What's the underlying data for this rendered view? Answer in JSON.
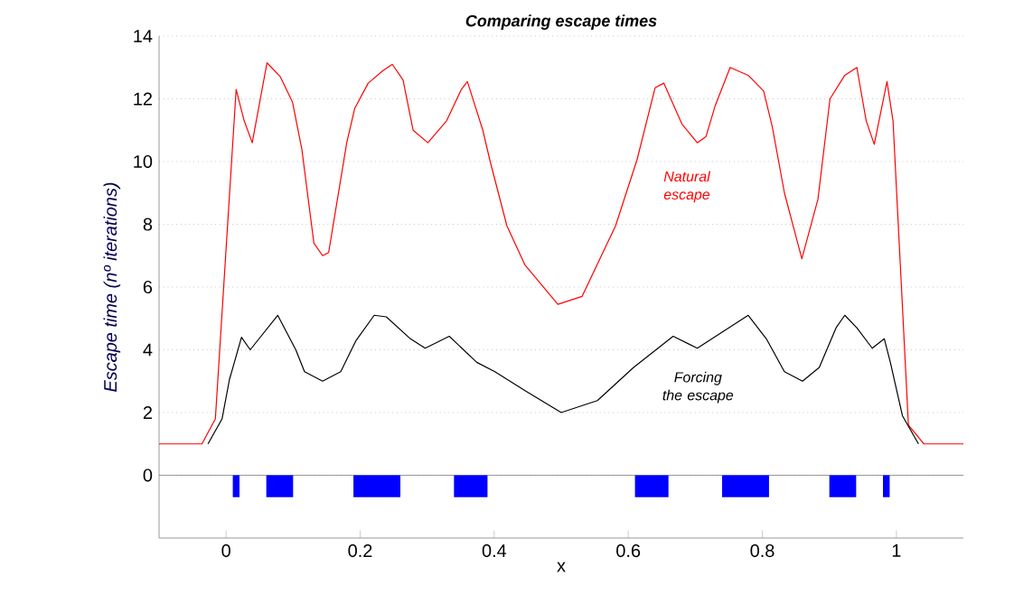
{
  "chart_data": {
    "type": "line",
    "title": "Comparing escape times",
    "xlabel": "x",
    "ylabel": "Escape time (nº iterations)",
    "xlim": [
      -0.1,
      1.1
    ],
    "ylim": [
      -2,
      14
    ],
    "xticks": [
      0,
      0.2,
      0.4,
      0.6,
      0.8,
      1
    ],
    "yticks": [
      0,
      2,
      4,
      6,
      8,
      10,
      12,
      14
    ],
    "grid": "y",
    "ref_lines": [
      {
        "axis": "y",
        "value": 0,
        "color": "#808080"
      }
    ],
    "annotations": [
      "Natural escape",
      "Forcing the escape"
    ],
    "series": [
      {
        "color": "#ff0000",
        "x": [
          -0.1,
          -0.036,
          -0.016,
          0.015,
          0.027,
          0.039,
          0.061,
          0.081,
          0.099,
          0.113,
          0.131,
          0.144,
          0.153,
          0.18,
          0.192,
          0.212,
          0.234,
          0.248,
          0.264,
          0.279,
          0.301,
          0.329,
          0.351,
          0.36,
          0.383,
          0.394,
          0.419,
          0.446,
          0.495,
          0.531,
          0.581,
          0.613,
          0.64,
          0.653,
          0.68,
          0.703,
          0.716,
          0.73,
          0.752,
          0.779,
          0.802,
          0.815,
          0.833,
          0.859,
          0.883,
          0.901,
          0.923,
          0.941,
          0.955,
          0.967,
          0.986,
          0.995,
          1.018,
          1.041,
          1.1
        ],
        "values": [
          1,
          1,
          1.8,
          12.3,
          11.3,
          10.6,
          13.15,
          12.7,
          11.9,
          10.4,
          7.4,
          7.0,
          7.1,
          10.6,
          11.7,
          12.5,
          12.9,
          13.1,
          12.6,
          11.0,
          10.6,
          11.3,
          12.3,
          12.55,
          11.0,
          10.0,
          7.95,
          6.7,
          5.45,
          5.7,
          7.95,
          10.05,
          12.35,
          12.5,
          11.2,
          10.6,
          10.8,
          11.8,
          13.0,
          12.75,
          12.25,
          11.1,
          9.0,
          6.9,
          8.8,
          12.0,
          12.75,
          13.0,
          11.3,
          10.55,
          12.55,
          11.3,
          1.6,
          1.0,
          1.0
        ]
      },
      {
        "color": "#000000",
        "x": [
          -0.027,
          -0.006,
          0.005,
          0.023,
          0.036,
          0.077,
          0.104,
          0.117,
          0.144,
          0.171,
          0.194,
          0.221,
          0.239,
          0.275,
          0.297,
          0.333,
          0.374,
          0.401,
          0.446,
          0.5,
          0.554,
          0.608,
          0.667,
          0.703,
          0.779,
          0.806,
          0.833,
          0.86,
          0.885,
          0.91,
          0.923,
          0.941,
          0.964,
          0.982,
          0.991,
          1.009,
          1.033
        ],
        "values": [
          1,
          1.8,
          3.05,
          4.4,
          4.0,
          5.1,
          4.0,
          3.3,
          3.0,
          3.3,
          4.3,
          5.1,
          5.05,
          4.35,
          4.05,
          4.43,
          3.6,
          3.3,
          2.7,
          2.0,
          2.38,
          3.44,
          4.43,
          4.05,
          5.1,
          4.35,
          3.3,
          3.0,
          3.44,
          4.7,
          5.1,
          4.7,
          4.05,
          4.35,
          3.6,
          1.9,
          1.0
        ]
      },
      {
        "type": "area",
        "color": "#0000ff",
        "x": [
          0.01,
          0.01,
          0.02,
          0.02,
          0.06,
          0.06,
          0.1,
          0.1,
          0.19,
          0.19,
          0.26,
          0.26,
          0.34,
          0.34,
          0.39,
          0.39,
          0.61,
          0.61,
          0.66,
          0.66,
          0.74,
          0.74,
          0.81,
          0.81,
          0.9,
          0.9,
          0.94,
          0.94,
          0.98,
          0.98,
          0.99,
          0.99
        ],
        "values": [
          0,
          -0.7,
          -0.7,
          0,
          0,
          -0.7,
          -0.7,
          0,
          0,
          -0.7,
          -0.7,
          0,
          0,
          -0.7,
          -0.7,
          0,
          0,
          -0.7,
          -0.7,
          0,
          0,
          -0.7,
          -0.7,
          0,
          0,
          -0.7,
          -0.7,
          0,
          0,
          -0.7,
          -0.7,
          0
        ]
      }
    ]
  }
}
